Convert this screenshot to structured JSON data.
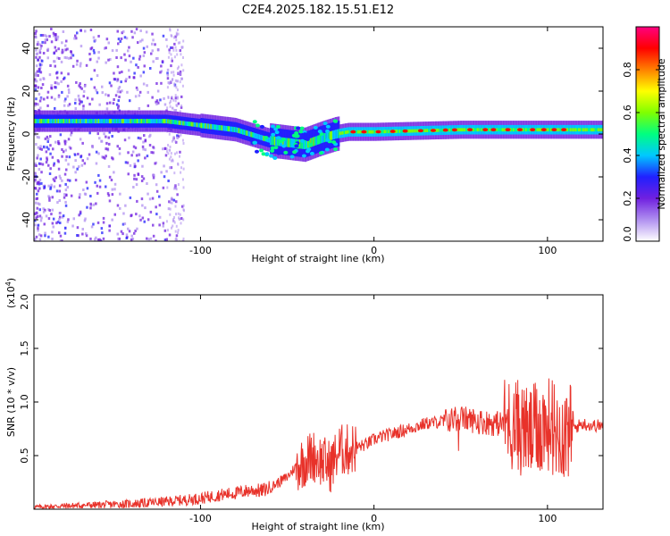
{
  "title": "C2E4.2025.182.15.51.E12",
  "chart_data": [
    {
      "type": "heatmap",
      "xlabel": "Height of straight line (km)",
      "ylabel": "Frequency (Hz)",
      "xlim": [
        -196,
        132
      ],
      "ylim": [
        -50,
        50
      ],
      "xticks": [
        -100,
        0,
        100
      ],
      "yticks": [
        -40,
        -20,
        0,
        20,
        40
      ],
      "ridge": [
        {
          "x": -180,
          "y": 6
        },
        {
          "x": -150,
          "y": 6
        },
        {
          "x": -120,
          "y": 6
        },
        {
          "x": -100,
          "y": 4
        },
        {
          "x": -80,
          "y": 2
        },
        {
          "x": -60,
          "y": -3
        },
        {
          "x": -40,
          "y": -5
        },
        {
          "x": -30,
          "y": -2
        },
        {
          "x": -22,
          "y": 0
        },
        {
          "x": -15,
          "y": 1
        },
        {
          "x": 0,
          "y": 1
        },
        {
          "x": 50,
          "y": 2
        },
        {
          "x": 100,
          "y": 2
        },
        {
          "x": 132,
          "y": 2
        }
      ],
      "colorbar": {
        "label": "Normalized spectral amplitude",
        "range": [
          0,
          1
        ],
        "ticks": [
          "0.0",
          "0.2",
          "0.4",
          "0.6",
          "0.8"
        ],
        "colors": [
          "#ffffff",
          "#b090f0",
          "#7020e0",
          "#2020ff",
          "#00c8ff",
          "#00ff80",
          "#80ff00",
          "#ffff00",
          "#ff8000",
          "#ff0000",
          "#ff0080"
        ]
      }
    },
    {
      "type": "line",
      "xlabel": "Height of straight line (km)",
      "ylabel": "SNR (10 * v/v)",
      "multiplier": "(x10",
      "multiplier_exp": "4",
      "multiplier_close": ")",
      "xlim": [
        -196,
        132
      ],
      "ylim": [
        0,
        2.0
      ],
      "xticks": [
        -100,
        0,
        100
      ],
      "yticks": [
        0.5,
        1.0,
        1.5,
        2.0
      ],
      "ytick_labels": [
        "0.5",
        "1.0",
        "1.5",
        "2.0"
      ],
      "color": "#e8322a",
      "x": [
        -196,
        -180,
        -160,
        -140,
        -120,
        -100,
        -90,
        -80,
        -70,
        -65,
        -60,
        -55,
        -50,
        -45,
        -40,
        -35,
        -30,
        -25,
        -20,
        -15,
        -10,
        -5,
        0,
        5,
        10,
        20,
        30,
        40,
        50,
        60,
        70,
        80,
        85,
        90,
        95,
        100,
        105,
        110,
        115,
        120,
        125,
        132
      ],
      "y": [
        0.02,
        0.03,
        0.04,
        0.05,
        0.07,
        0.1,
        0.13,
        0.15,
        0.18,
        0.17,
        0.2,
        0.25,
        0.3,
        0.4,
        0.45,
        0.5,
        0.45,
        0.4,
        0.55,
        0.55,
        0.58,
        0.6,
        0.65,
        0.68,
        0.7,
        0.75,
        0.8,
        0.82,
        0.85,
        0.82,
        0.8,
        0.8,
        0.75,
        0.7,
        0.75,
        0.8,
        0.75,
        0.7,
        0.75,
        0.8,
        0.78,
        0.78
      ]
    }
  ]
}
